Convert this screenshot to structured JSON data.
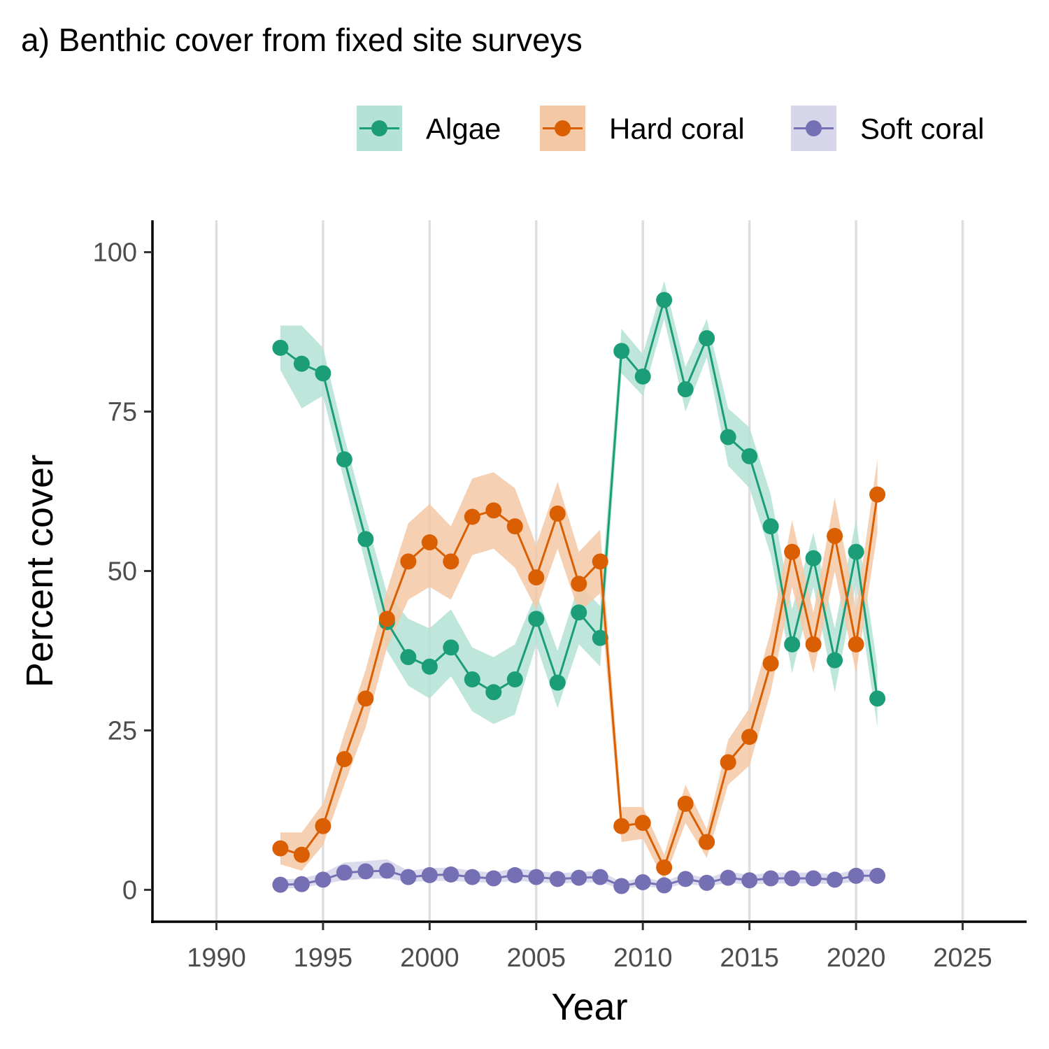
{
  "chart_data": {
    "type": "line",
    "title": "a) Benthic cover from fixed site surveys",
    "xlabel": "Year",
    "ylabel": "Percent cover",
    "xlim": [
      1987,
      2028
    ],
    "ylim": [
      -5,
      105
    ],
    "xticks": [
      1990,
      1995,
      2000,
      2005,
      2010,
      2015,
      2020,
      2025
    ],
    "yticks": [
      0,
      25,
      50,
      75,
      100
    ],
    "grid": "vertical major",
    "legend_position": "top-right",
    "x": [
      1993,
      1994,
      1995,
      1996,
      1997,
      1998,
      1999,
      2000,
      2001,
      2002,
      2003,
      2004,
      2005,
      2006,
      2007,
      2008,
      2009,
      2010,
      2011,
      2012,
      2013,
      2014,
      2015,
      2016,
      2017,
      2018,
      2019,
      2020,
      2021
    ],
    "series": [
      {
        "name": "Algae",
        "color": "#1b9e77",
        "band_color": "#b4e2d4",
        "values": [
          85.0,
          82.5,
          81.0,
          67.5,
          55.0,
          42.0,
          36.5,
          35.0,
          38.0,
          33.0,
          31.0,
          33.0,
          42.5,
          32.5,
          43.5,
          39.5,
          84.5,
          80.5,
          92.5,
          78.5,
          86.5,
          71.0,
          68.0,
          57.0,
          38.5,
          52.0,
          36.0,
          53.0,
          30.0
        ],
        "lower": [
          81.5,
          75.5,
          77.5,
          64.0,
          51.0,
          37.5,
          32.0,
          30.0,
          33.5,
          28.0,
          26.0,
          27.5,
          38.5,
          28.5,
          38.5,
          35.0,
          81.0,
          77.5,
          89.5,
          75.0,
          83.5,
          66.5,
          63.0,
          52.5,
          34.0,
          47.5,
          31.0,
          48.0,
          25.5
        ],
        "upper": [
          88.5,
          88.5,
          85.0,
          71.0,
          58.5,
          46.5,
          42.5,
          41.0,
          44.0,
          38.0,
          36.5,
          38.5,
          46.5,
          37.5,
          48.0,
          44.5,
          88.0,
          84.0,
          95.5,
          82.0,
          89.5,
          75.5,
          72.5,
          62.0,
          44.0,
          56.0,
          41.0,
          58.0,
          35.0
        ]
      },
      {
        "name": "Hard coral",
        "color": "#d95f02",
        "band_color": "#f4c8a5",
        "values": [
          6.5,
          5.5,
          10.0,
          20.5,
          30.0,
          42.5,
          51.5,
          54.5,
          51.5,
          58.5,
          59.5,
          57.0,
          49.0,
          59.0,
          48.0,
          51.5,
          10.0,
          10.5,
          3.5,
          13.5,
          7.5,
          20.0,
          24.0,
          35.5,
          53.0,
          38.5,
          55.5,
          38.5,
          62.0
        ],
        "lower": [
          4.0,
          3.0,
          7.0,
          16.5,
          25.5,
          38.0,
          45.5,
          47.5,
          45.5,
          52.5,
          53.5,
          50.5,
          44.0,
          53.5,
          43.5,
          46.5,
          7.5,
          8.0,
          1.5,
          10.5,
          5.0,
          16.5,
          19.5,
          31.0,
          47.5,
          34.0,
          50.0,
          34.0,
          56.0
        ],
        "upper": [
          9.0,
          9.0,
          13.5,
          24.5,
          34.5,
          47.0,
          57.5,
          60.5,
          57.0,
          64.5,
          65.5,
          63.0,
          54.0,
          64.0,
          53.0,
          56.5,
          13.0,
          13.0,
          5.5,
          16.5,
          9.5,
          23.5,
          28.5,
          40.5,
          58.0,
          43.5,
          61.5,
          44.0,
          67.5
        ]
      },
      {
        "name": "Soft coral",
        "color": "#7570b3",
        "band_color": "#d6d5ea",
        "values": [
          0.8,
          0.9,
          1.6,
          2.7,
          2.9,
          3.0,
          2.0,
          2.3,
          2.4,
          2.0,
          1.8,
          2.3,
          2.0,
          1.7,
          1.9,
          2.0,
          0.6,
          1.2,
          0.7,
          1.7,
          1.1,
          1.9,
          1.5,
          1.8,
          1.8,
          1.8,
          1.6,
          2.2,
          2.2
        ],
        "lower": [
          0.2,
          0.3,
          0.9,
          1.5,
          1.7,
          1.8,
          1.2,
          1.4,
          1.4,
          1.2,
          1.1,
          1.4,
          1.2,
          1.0,
          1.1,
          1.2,
          0.1,
          0.6,
          0.2,
          1.0,
          0.5,
          1.1,
          0.8,
          1.0,
          1.0,
          1.0,
          0.9,
          1.3,
          1.3
        ],
        "upper": [
          1.6,
          1.8,
          2.6,
          4.3,
          4.5,
          4.8,
          3.0,
          3.4,
          3.5,
          3.0,
          2.7,
          3.4,
          3.0,
          2.6,
          2.8,
          3.0,
          1.2,
          2.0,
          1.3,
          2.6,
          1.8,
          2.9,
          2.3,
          2.7,
          2.7,
          2.7,
          2.4,
          3.2,
          3.2
        ]
      }
    ]
  }
}
